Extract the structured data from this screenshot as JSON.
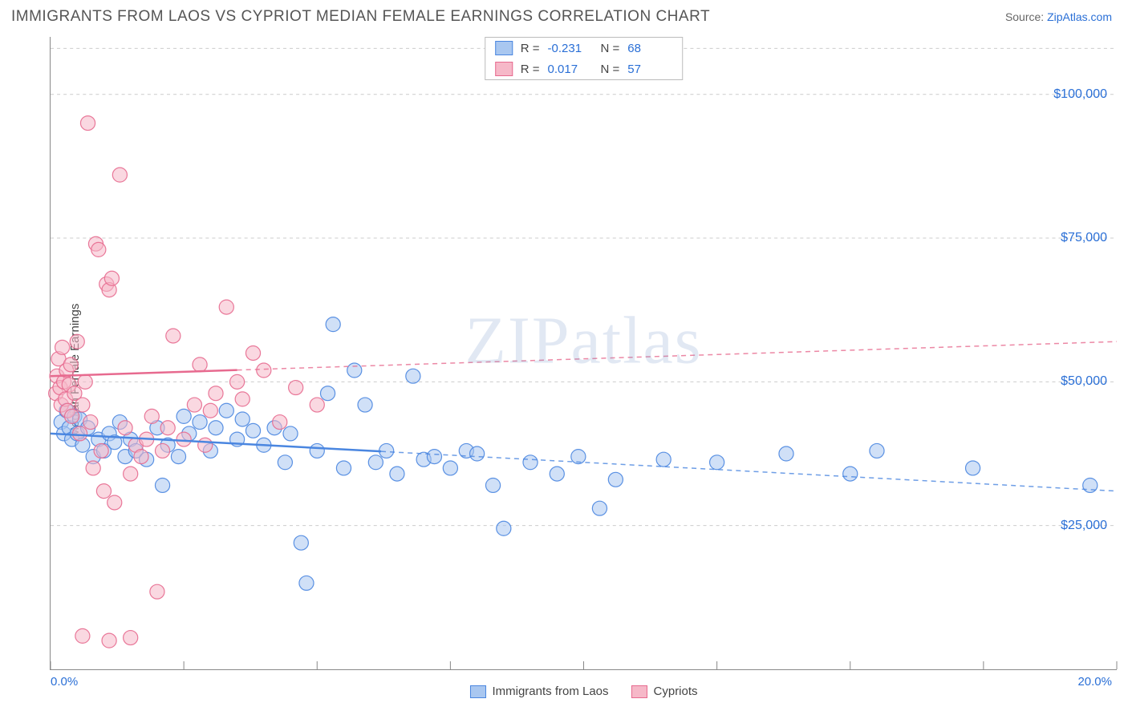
{
  "header": {
    "title": "IMMIGRANTS FROM LAOS VS CYPRIOT MEDIAN FEMALE EARNINGS CORRELATION CHART",
    "source_prefix": "Source: ",
    "source_link": "ZipAtlas.com"
  },
  "ylabel": "Median Female Earnings",
  "watermark": "ZIPatlas",
  "chart": {
    "type": "scatter",
    "xlim": [
      0,
      20
    ],
    "ylim": [
      0,
      110000
    ],
    "x_ticks": [
      0,
      2.5,
      5,
      7.5,
      10,
      12.5,
      15,
      17.5,
      20
    ],
    "x_tick_labels": {
      "0": "0.0%",
      "20": "20.0%"
    },
    "y_gridlines": [
      25000,
      50000,
      75000,
      100000
    ],
    "y_tick_labels": {
      "25000": "$25,000",
      "50000": "$50,000",
      "75000": "$75,000",
      "100000": "$100,000"
    },
    "y_top_dash": 108000,
    "grid_color": "#cccccc",
    "axis_color": "#888888",
    "background_color": "#ffffff",
    "point_radius": 9,
    "point_opacity": 0.55,
    "point_stroke_width": 1.2,
    "trend_line_width": 2.5,
    "trend_dash": "6,5"
  },
  "series": [
    {
      "id": "laos",
      "label": "Immigrants from Laos",
      "fill": "#a9c7f0",
      "stroke": "#4a86e0",
      "R_label": "R =",
      "R_value": "-0.231",
      "N_label": "N =",
      "N_value": "68",
      "trend": {
        "x1": 0,
        "y1": 41000,
        "x2": 20,
        "y2": 31000,
        "solid_until_x": 6.2
      },
      "points": [
        [
          0.2,
          43000
        ],
        [
          0.25,
          41000
        ],
        [
          0.3,
          45000
        ],
        [
          0.35,
          42000
        ],
        [
          0.4,
          40000
        ],
        [
          0.45,
          44000
        ],
        [
          0.5,
          41000
        ],
        [
          0.55,
          43500
        ],
        [
          0.6,
          39000
        ],
        [
          0.7,
          42000
        ],
        [
          0.8,
          37000
        ],
        [
          0.9,
          40000
        ],
        [
          1.0,
          38000
        ],
        [
          1.1,
          41000
        ],
        [
          1.2,
          39500
        ],
        [
          1.3,
          43000
        ],
        [
          1.4,
          37000
        ],
        [
          1.5,
          40000
        ],
        [
          1.6,
          38000
        ],
        [
          1.8,
          36500
        ],
        [
          2.0,
          42000
        ],
        [
          2.1,
          32000
        ],
        [
          2.2,
          39000
        ],
        [
          2.4,
          37000
        ],
        [
          2.5,
          44000
        ],
        [
          2.6,
          41000
        ],
        [
          2.8,
          43000
        ],
        [
          3.0,
          38000
        ],
        [
          3.1,
          42000
        ],
        [
          3.3,
          45000
        ],
        [
          3.5,
          40000
        ],
        [
          3.6,
          43500
        ],
        [
          3.8,
          41500
        ],
        [
          4.0,
          39000
        ],
        [
          4.2,
          42000
        ],
        [
          4.4,
          36000
        ],
        [
          4.5,
          41000
        ],
        [
          4.7,
          22000
        ],
        [
          4.8,
          15000
        ],
        [
          5.0,
          38000
        ],
        [
          5.2,
          48000
        ],
        [
          5.3,
          60000
        ],
        [
          5.5,
          35000
        ],
        [
          5.7,
          52000
        ],
        [
          5.9,
          46000
        ],
        [
          6.1,
          36000
        ],
        [
          6.3,
          38000
        ],
        [
          6.5,
          34000
        ],
        [
          6.8,
          51000
        ],
        [
          7.0,
          36500
        ],
        [
          7.2,
          37000
        ],
        [
          7.5,
          35000
        ],
        [
          7.8,
          38000
        ],
        [
          8.0,
          37500
        ],
        [
          8.3,
          32000
        ],
        [
          8.5,
          24500
        ],
        [
          9.0,
          36000
        ],
        [
          9.5,
          34000
        ],
        [
          9.9,
          37000
        ],
        [
          10.3,
          28000
        ],
        [
          10.6,
          33000
        ],
        [
          11.5,
          36500
        ],
        [
          12.5,
          36000
        ],
        [
          13.8,
          37500
        ],
        [
          15.0,
          34000
        ],
        [
          15.5,
          38000
        ],
        [
          17.3,
          35000
        ],
        [
          19.5,
          32000
        ]
      ]
    },
    {
      "id": "cypriots",
      "label": "Cypriots",
      "fill": "#f6b8c8",
      "stroke": "#e76a8f",
      "R_label": "R =",
      "R_value": "0.017",
      "N_label": "N =",
      "N_value": "57",
      "trend": {
        "x1": 0,
        "y1": 51000,
        "x2": 20,
        "y2": 57000,
        "solid_until_x": 3.5
      },
      "points": [
        [
          0.1,
          48000
        ],
        [
          0.12,
          51000
        ],
        [
          0.15,
          54000
        ],
        [
          0.18,
          49000
        ],
        [
          0.2,
          46000
        ],
        [
          0.22,
          56000
        ],
        [
          0.25,
          50000
        ],
        [
          0.28,
          47000
        ],
        [
          0.3,
          52000
        ],
        [
          0.32,
          45000
        ],
        [
          0.35,
          49500
        ],
        [
          0.38,
          53000
        ],
        [
          0.4,
          44000
        ],
        [
          0.45,
          48000
        ],
        [
          0.5,
          57000
        ],
        [
          0.55,
          41000
        ],
        [
          0.6,
          46000
        ],
        [
          0.65,
          50000
        ],
        [
          0.7,
          95000
        ],
        [
          0.75,
          43000
        ],
        [
          0.8,
          35000
        ],
        [
          0.85,
          74000
        ],
        [
          0.9,
          73000
        ],
        [
          0.95,
          38000
        ],
        [
          1.0,
          31000
        ],
        [
          1.05,
          67000
        ],
        [
          1.1,
          66000
        ],
        [
          1.15,
          68000
        ],
        [
          1.2,
          29000
        ],
        [
          1.3,
          86000
        ],
        [
          1.4,
          42000
        ],
        [
          1.5,
          34000
        ],
        [
          1.6,
          39000
        ],
        [
          1.7,
          37000
        ],
        [
          1.8,
          40000
        ],
        [
          1.1,
          5000
        ],
        [
          1.5,
          5500
        ],
        [
          0.6,
          5800
        ],
        [
          1.9,
          44000
        ],
        [
          2.0,
          13500
        ],
        [
          2.1,
          38000
        ],
        [
          2.2,
          42000
        ],
        [
          2.3,
          58000
        ],
        [
          2.5,
          40000
        ],
        [
          2.7,
          46000
        ],
        [
          2.8,
          53000
        ],
        [
          2.9,
          39000
        ],
        [
          3.0,
          45000
        ],
        [
          3.1,
          48000
        ],
        [
          3.3,
          63000
        ],
        [
          3.5,
          50000
        ],
        [
          3.6,
          47000
        ],
        [
          3.8,
          55000
        ],
        [
          4.0,
          52000
        ],
        [
          4.3,
          43000
        ],
        [
          4.6,
          49000
        ],
        [
          5.0,
          46000
        ]
      ]
    }
  ],
  "corr_legend_title": "",
  "bottom_legend_sep": ""
}
